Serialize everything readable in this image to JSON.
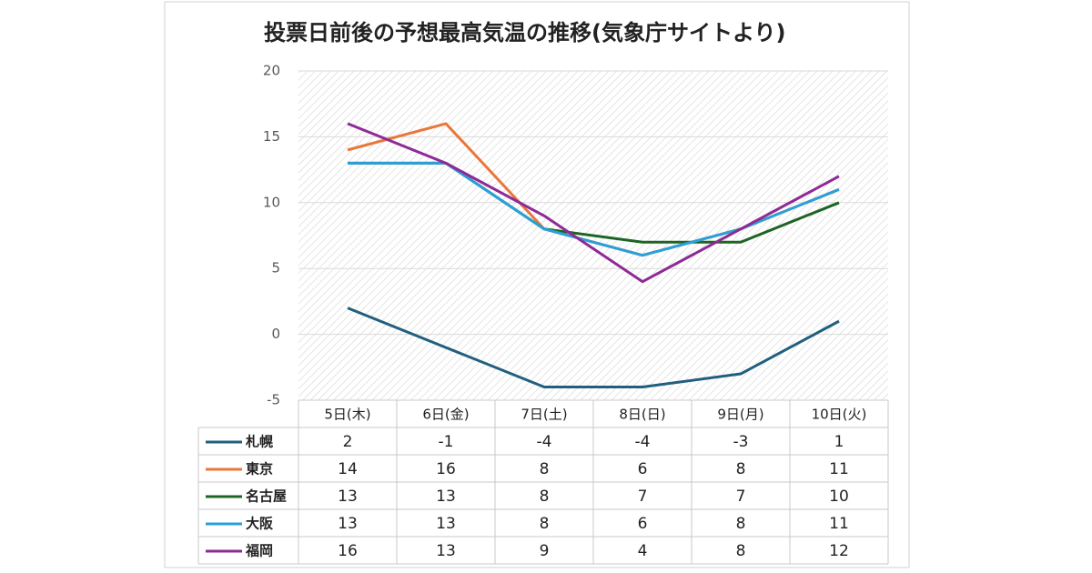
{
  "chart_data": {
    "type": "line",
    "title": "投票日前後の予想最高気温の推移(気象庁サイトより)",
    "categories": [
      "5日(木)",
      "6日(金)",
      "7日(土)",
      "8日(日)",
      "9日(月)",
      "10日(火)"
    ],
    "series": [
      {
        "name": "札幌",
        "color": "#215f7e",
        "values": [
          2,
          -1,
          -4,
          -4,
          -3,
          1
        ]
      },
      {
        "name": "東京",
        "color": "#e8773a",
        "values": [
          14,
          16,
          8,
          6,
          8,
          11
        ]
      },
      {
        "name": "名古屋",
        "color": "#1e6424",
        "values": [
          13,
          13,
          8,
          7,
          7,
          10
        ]
      },
      {
        "name": "大阪",
        "color": "#2aa0d8",
        "values": [
          13,
          13,
          8,
          6,
          8,
          11
        ]
      },
      {
        "name": "福岡",
        "color": "#8e2a96",
        "values": [
          16,
          13,
          9,
          4,
          8,
          12
        ]
      }
    ],
    "ylim": [
      -5,
      20
    ],
    "yticks": [
      -5,
      0,
      5,
      10,
      15,
      20
    ],
    "grid": true,
    "data_table": true
  }
}
